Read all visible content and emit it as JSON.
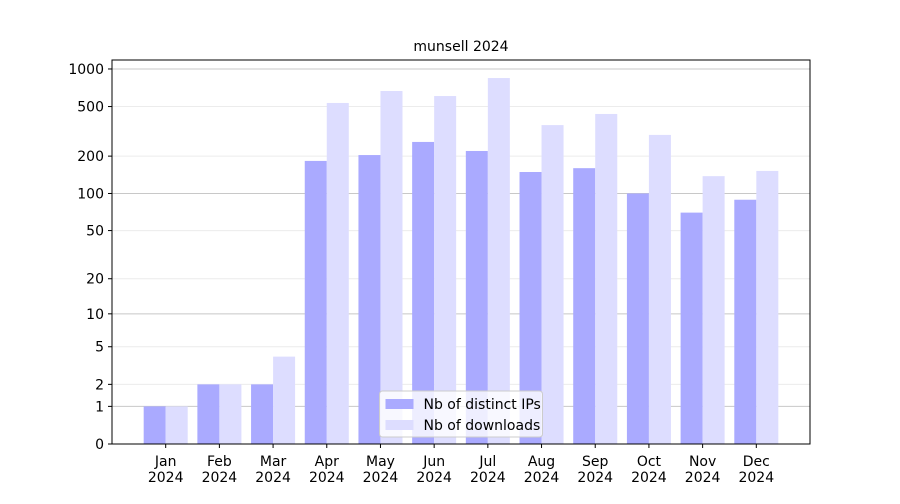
{
  "chart_data": {
    "type": "bar",
    "title": "munsell 2024",
    "categories": [
      "Jan\n2024",
      "Feb\n2024",
      "Mar\n2024",
      "Apr\n2024",
      "May\n2024",
      "Jun\n2024",
      "Jul\n2024",
      "Aug\n2024",
      "Sep\n2024",
      "Oct\n2024",
      "Nov\n2024",
      "Dec\n2024"
    ],
    "series": [
      {
        "name": "Nb of distinct IPs",
        "color": "#aaaaff",
        "values": [
          1,
          2,
          2,
          183,
          204,
          260,
          220,
          149,
          160,
          100,
          70,
          89
        ]
      },
      {
        "name": "Nb of downloads",
        "color": "#ddddff",
        "values": [
          1,
          2,
          4,
          534,
          666,
          607,
          846,
          355,
          436,
          296,
          138,
          152
        ]
      }
    ],
    "y_scale": "log1p",
    "ylim": [
      0,
      1180
    ],
    "yticks": [
      0,
      1,
      2,
      5,
      10,
      20,
      50,
      100,
      200,
      500,
      1000
    ],
    "grid": true,
    "legend_position": "lower center"
  }
}
